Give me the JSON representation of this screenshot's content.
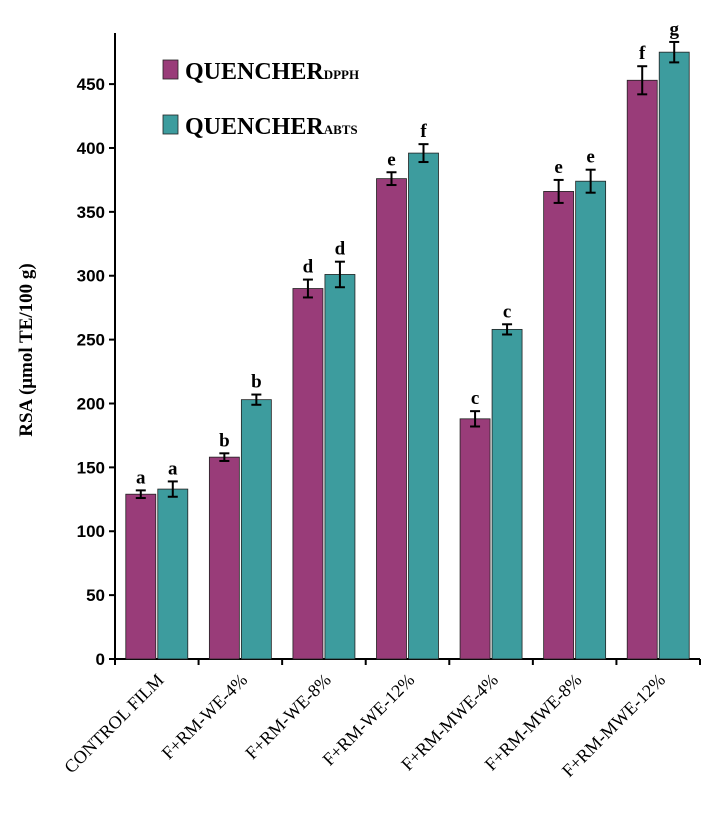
{
  "chart_data": {
    "type": "bar",
    "ylabel": "RSA (μmol TE/100 g)",
    "ylim": [
      0,
      490
    ],
    "yticks": [
      0,
      50,
      100,
      150,
      200,
      250,
      300,
      350,
      400,
      450
    ],
    "categories": [
      "CONTROL FILM",
      "F+RM-WE-4%",
      "F+RM-WE-8%",
      "F+RM-WE-12%",
      "F+RM-MWE-4%",
      "F+RM-MWE-8%",
      "F+RM-MWE-12%"
    ],
    "legend_position": "top-left",
    "grid": false,
    "series": [
      {
        "name": "QUENCHER",
        "name_sub": "DPPH",
        "color": "#993c79",
        "values": [
          129,
          158,
          290,
          376,
          188,
          366,
          453
        ],
        "errors": [
          3,
          3,
          7,
          5,
          6,
          9,
          11
        ],
        "letters": [
          "a",
          "b",
          "d",
          "e",
          "c",
          "e",
          "f"
        ]
      },
      {
        "name": "QUENCHER",
        "name_sub": "ABTS",
        "color": "#3d9c9e",
        "values": [
          133,
          203,
          301,
          396,
          258,
          374,
          475
        ],
        "errors": [
          6,
          4,
          10,
          7,
          4,
          9,
          8
        ],
        "letters": [
          "a",
          "b",
          "d",
          "f",
          "c",
          "e",
          "g"
        ]
      }
    ]
  }
}
